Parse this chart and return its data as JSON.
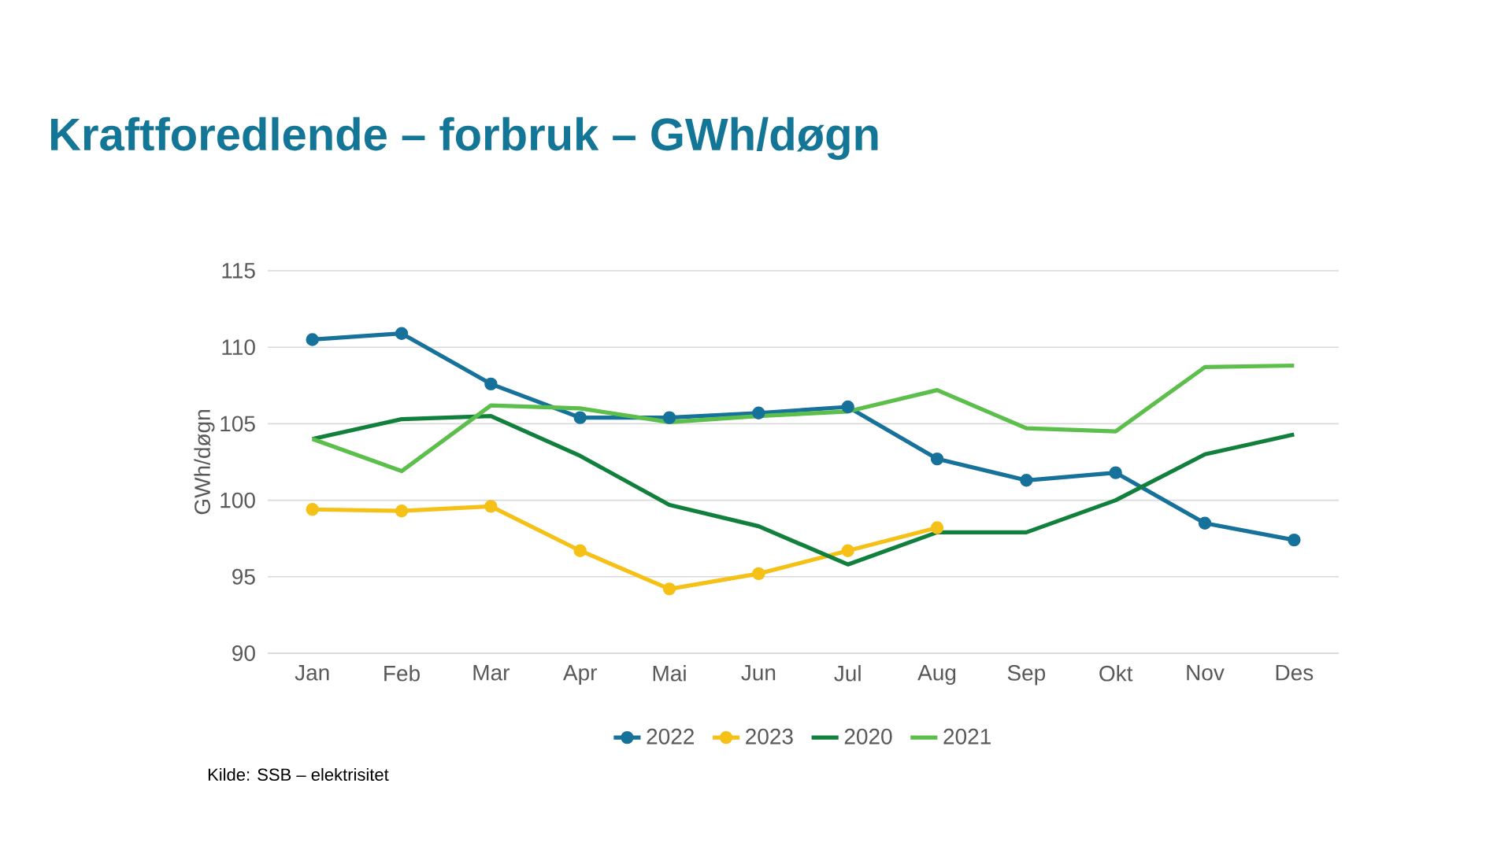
{
  "chart_data": {
    "type": "line",
    "title": "Kraftforedlende – forbruk – GWh/døgn",
    "ylabel": "GWh/døgn",
    "categories": [
      "Jan",
      "Feb",
      "Mar",
      "Apr",
      "Mai",
      "Jun",
      "Jul",
      "Aug",
      "Sep",
      "Okt",
      "Nov",
      "Des"
    ],
    "series": [
      {
        "name": "2022",
        "color": "#16719b",
        "marker": "circle",
        "values": [
          110.5,
          110.9,
          107.6,
          105.4,
          105.4,
          105.7,
          106.1,
          102.7,
          101.3,
          101.8,
          98.5,
          97.4
        ]
      },
      {
        "name": "2023",
        "color": "#f5c116",
        "marker": "circle",
        "values": [
          99.4,
          99.3,
          99.6,
          96.7,
          94.2,
          95.2,
          96.7,
          98.2,
          null,
          null,
          null,
          null
        ]
      },
      {
        "name": "2020",
        "color": "#12803d",
        "marker": "none",
        "values": [
          104.0,
          105.3,
          105.5,
          102.9,
          99.7,
          98.3,
          95.8,
          97.9,
          97.9,
          100.0,
          103.0,
          104.3
        ]
      },
      {
        "name": "2021",
        "color": "#5dbf4b",
        "marker": "none",
        "values": [
          104.0,
          101.9,
          106.2,
          106.0,
          105.1,
          105.5,
          105.8,
          107.2,
          104.7,
          104.5,
          108.7,
          108.8
        ]
      }
    ],
    "ylim": [
      90,
      115
    ],
    "yticks": [
      90,
      95,
      100,
      105,
      110,
      115
    ],
    "grid": "y",
    "legend": "bottom",
    "annotations": [
      "Kilde: SSB – elektrisitet"
    ]
  }
}
